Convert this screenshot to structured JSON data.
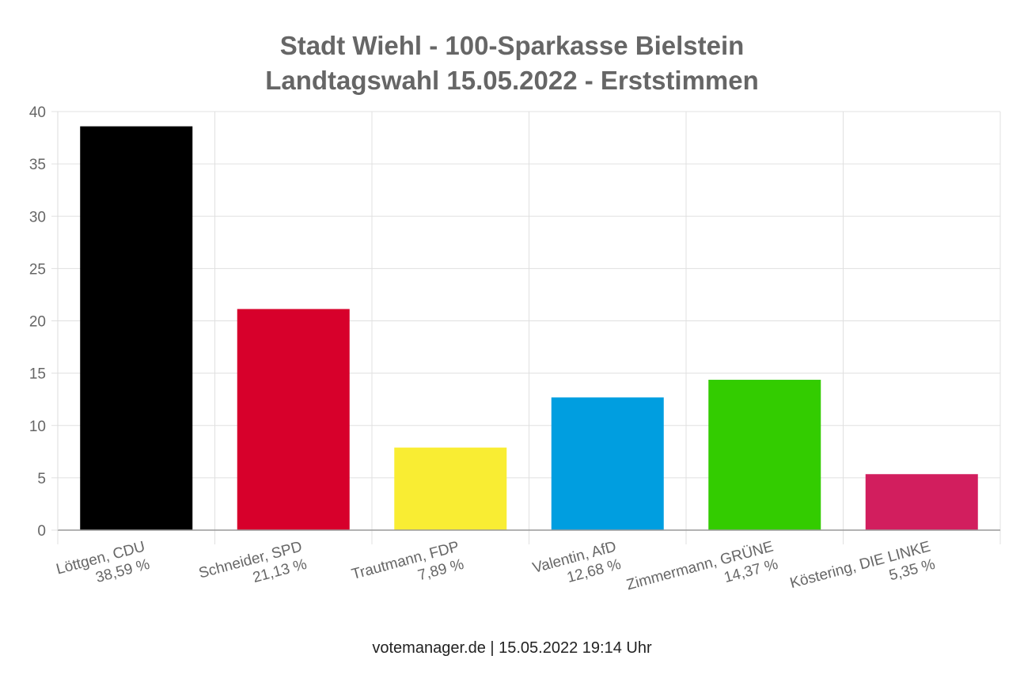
{
  "title_lines": [
    "Stadt Wiehl - 100-Sparkasse Bielstein",
    "Landtagswahl 15.05.2022  - Erststimmen"
  ],
  "footer": "votemanager.de | 15.05.2022 19:14 Uhr",
  "chart_data": {
    "type": "bar",
    "categories": [
      "Löttgen, CDU",
      "Schneider, SPD",
      "Trautmann, FDP",
      "Valentin, AfD",
      "Zimmermann, GRÜNE",
      "Köstering, DIE LINKE"
    ],
    "value_labels": [
      "38,59 %",
      "21,13 %",
      "7,89 %",
      "12,68 %",
      "14,37 %",
      "5,35 %"
    ],
    "values": [
      38.59,
      21.13,
      7.89,
      12.68,
      14.37,
      5.35
    ],
    "colors": [
      "#000000",
      "#d7002b",
      "#f9ed33",
      "#009ee0",
      "#33cc00",
      "#d21e5e"
    ],
    "ylim": [
      0,
      40
    ],
    "yticks": [
      0,
      5,
      10,
      15,
      20,
      25,
      30,
      35,
      40
    ],
    "grid": true,
    "legend": "none"
  }
}
